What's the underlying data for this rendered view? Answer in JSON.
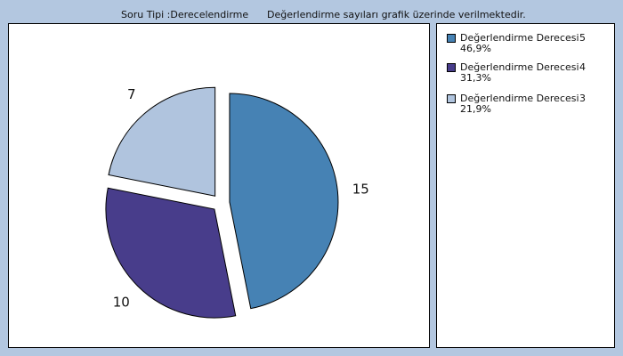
{
  "header": {
    "left": "Soru Tipi :Derecelendirme",
    "right": "Değerlendirme sayıları grafik üzerinde verilmektedir."
  },
  "chart_data": {
    "type": "pie",
    "title": "",
    "categories": [
      "Değerlendirme Derecesi 5",
      "Değerlendirme Derecesi 4",
      "Değerlendirme Derecesi 3"
    ],
    "values": [
      15,
      10,
      7
    ],
    "percentages": [
      "46,9%",
      "31,3%",
      "21,9%"
    ],
    "colors": [
      "#4682b4",
      "#483d8b",
      "#b0c4de"
    ],
    "legend_position": "right"
  },
  "legend": {
    "items": [
      {
        "label": "Değerlendirme Derecesi",
        "number": "5",
        "percent": "46,9%",
        "color": "#4682b4"
      },
      {
        "label": "Değerlendirme Derecesi",
        "number": "4",
        "percent": "31,3%",
        "color": "#483d8b"
      },
      {
        "label": "Değerlendirme Derecesi",
        "number": "3",
        "percent": "21,9%",
        "color": "#b0c4de"
      }
    ]
  }
}
